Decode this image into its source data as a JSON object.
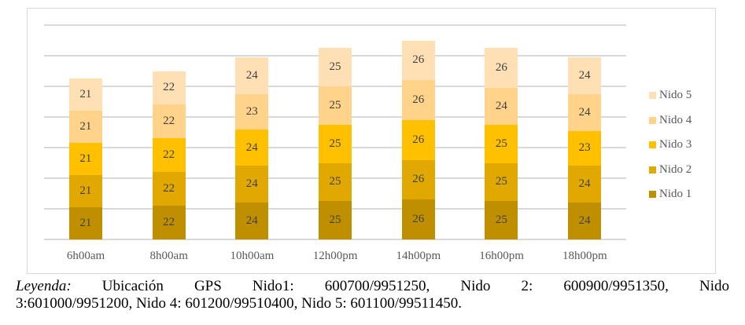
{
  "chart_data": {
    "type": "bar",
    "stacked": true,
    "title": "",
    "xlabel": "",
    "ylabel": "",
    "ylim": [
      0,
      140
    ],
    "y_gridlines": [
      0,
      20,
      40,
      60,
      80,
      100,
      120,
      140
    ],
    "grid": true,
    "y_axis_labels_visible": false,
    "legend_position": "right",
    "categories": [
      "6h00am",
      "8h00am",
      "10h00am",
      "12h00pm",
      "14h00pm",
      "16h00pm",
      "18h00pm"
    ],
    "series": [
      {
        "name": "Nido 1",
        "color": "#bf8f00",
        "values": [
          21,
          22,
          24,
          25,
          26,
          25,
          24
        ]
      },
      {
        "name": "Nido 2",
        "color": "#e0a800",
        "values": [
          21,
          22,
          24,
          25,
          26,
          25,
          24
        ]
      },
      {
        "name": "Nido 3",
        "color": "#ffc000",
        "values": [
          21,
          22,
          24,
          25,
          26,
          25,
          23
        ]
      },
      {
        "name": "Nido 4",
        "color": "#ffd38a",
        "values": [
          21,
          22,
          23,
          25,
          26,
          24,
          24
        ]
      },
      {
        "name": "Nido 5",
        "color": "#ffe0b5",
        "values": [
          21,
          22,
          24,
          25,
          26,
          26,
          24
        ]
      }
    ],
    "data_labels": true
  },
  "legend": {
    "items": [
      {
        "label": "Nido 5",
        "color": "#ffe0b5"
      },
      {
        "label": "Nido 4",
        "color": "#ffd38a"
      },
      {
        "label": "Nido 3",
        "color": "#ffc000"
      },
      {
        "label": "Nido 2",
        "color": "#e0a800"
      },
      {
        "label": "Nido 1",
        "color": "#bf8f00"
      }
    ]
  },
  "caption": {
    "prefix": "Leyenda:",
    "line1": " Ubicación GPS Nido1: 600700/9951250, Nido 2: 600900/9951350, Nido",
    "line2": "3:601000/9951200, Nido 4: 601200/99510400, Nido 5: 601100/99511450."
  }
}
